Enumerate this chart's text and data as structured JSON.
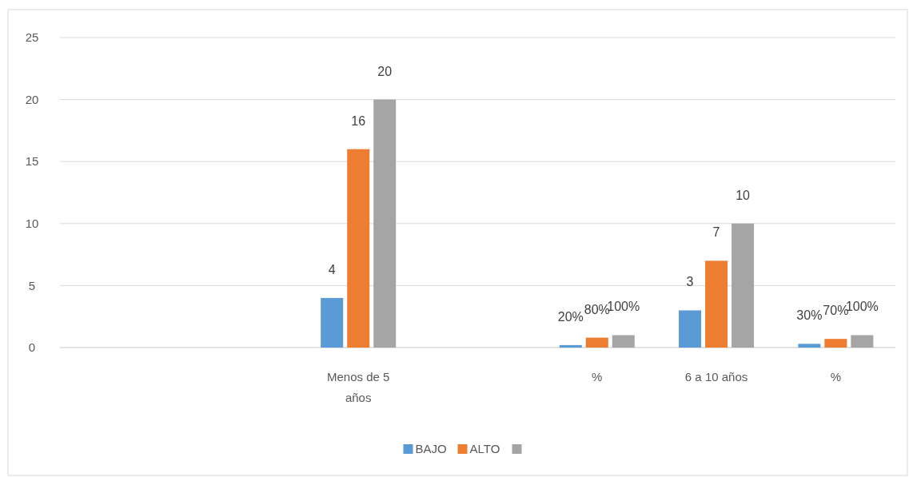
{
  "chart_data": {
    "type": "bar",
    "categories": [
      null,
      null,
      "Menos de 5 años",
      null,
      "%",
      "6 a 10 años",
      "%"
    ],
    "series": [
      {
        "name": "BAJO",
        "color": "#5b9bd5",
        "values": [
          null,
          null,
          4,
          null,
          0.2,
          3,
          0.3
        ],
        "value_labels": [
          null,
          null,
          "4",
          null,
          "20%",
          "3",
          "30%"
        ]
      },
      {
        "name": "ALTO",
        "color": "#ed7d31",
        "values": [
          null,
          null,
          16,
          null,
          0.8,
          7,
          0.7
        ],
        "value_labels": [
          null,
          null,
          "16",
          null,
          "80%",
          "7",
          "70%"
        ]
      },
      {
        "color": "#a5a5a5",
        "values": [
          null,
          null,
          20,
          null,
          1,
          10,
          1
        ],
        "value_labels": [
          null,
          null,
          "20",
          null,
          "100%",
          "10",
          "100%"
        ]
      }
    ],
    "ylim": [
      0,
      25
    ],
    "yticks": [
      0,
      5,
      10,
      15,
      20,
      25
    ],
    "grid": "y",
    "legend": "bottom"
  }
}
